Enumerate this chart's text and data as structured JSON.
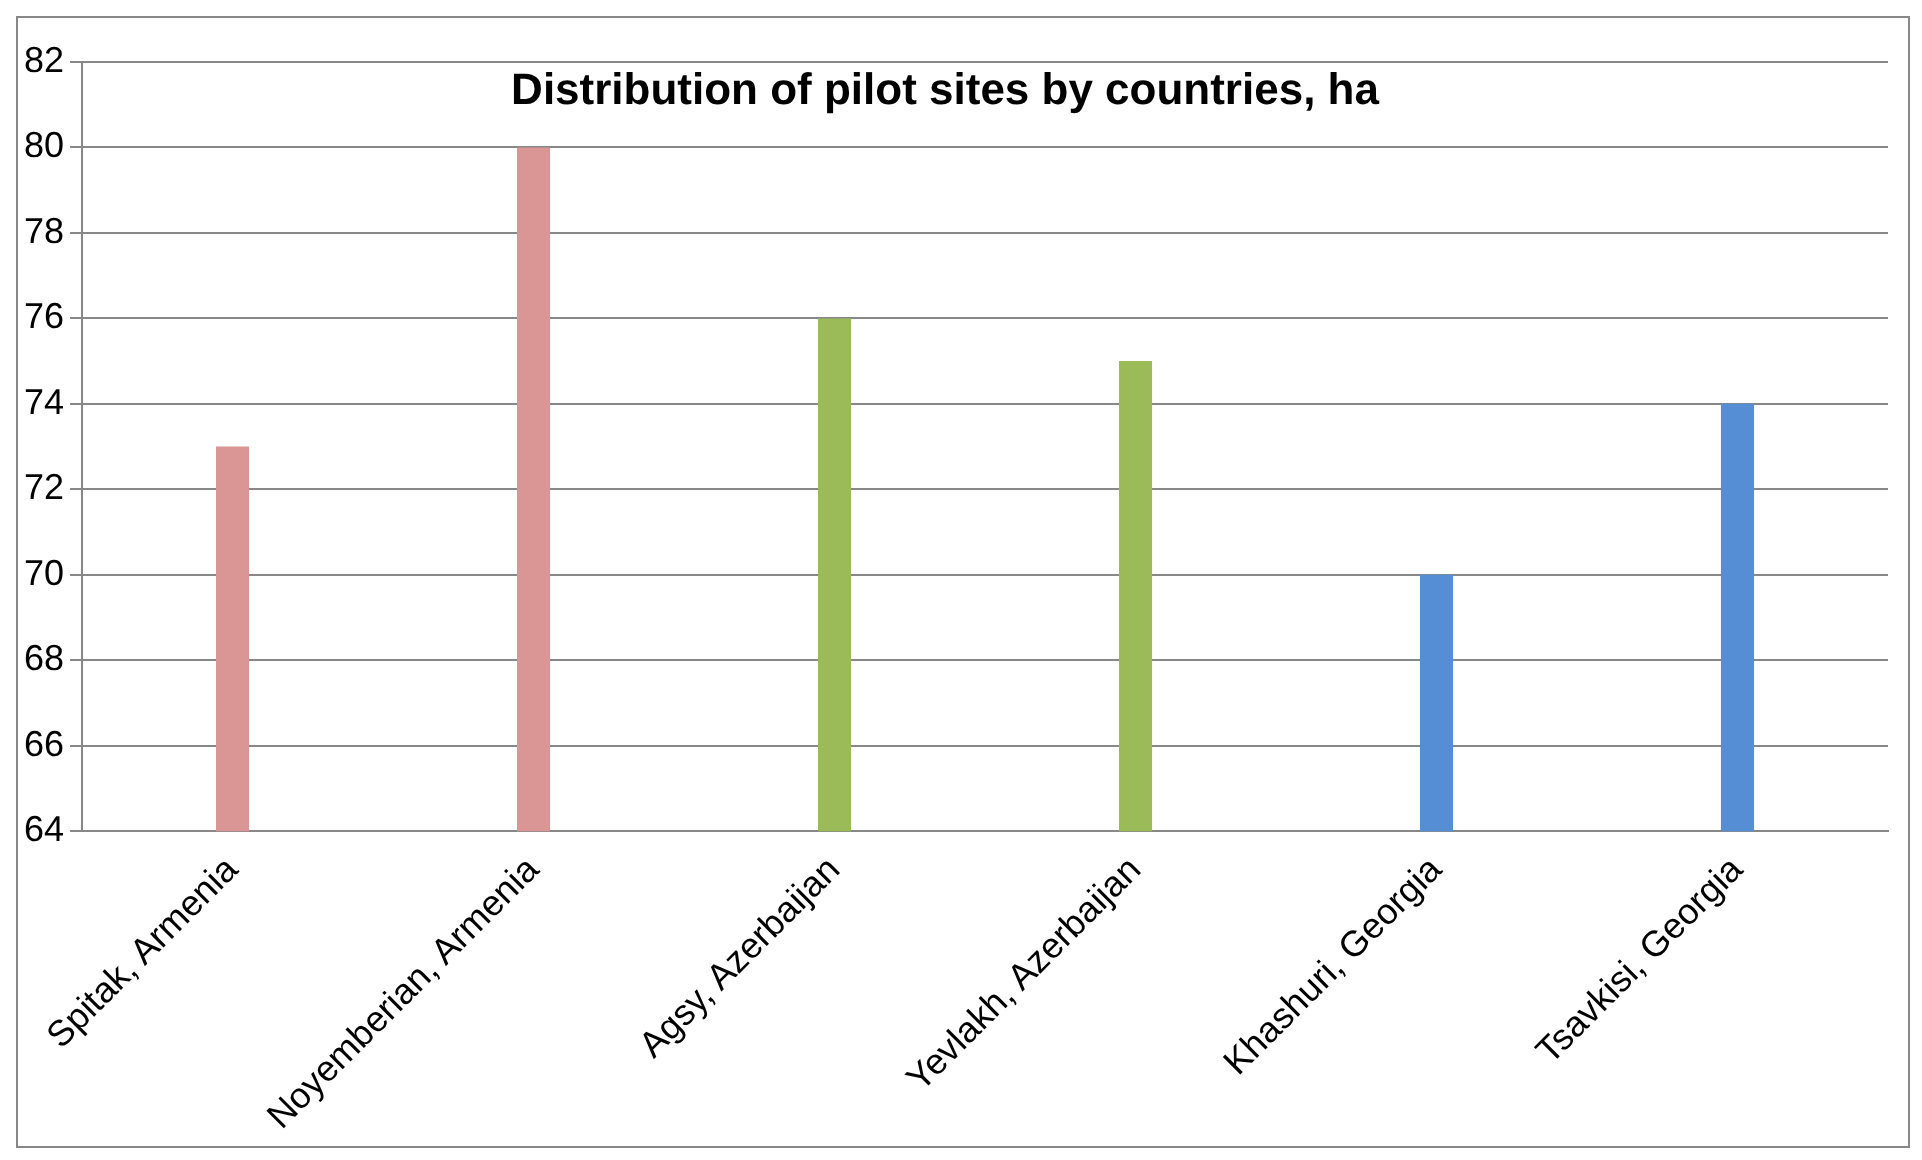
{
  "chart_data": {
    "type": "bar",
    "title": "Distribution of pilot sites by countries, ha",
    "categories": [
      "Spitak, Armenia",
      "Noyemberian, Armenia",
      "Agsy, Azerbaijan",
      "Yevlakh, Azerbaijan",
      "Khashuri, Georgia",
      "Tsavkisi, Georgia"
    ],
    "values": [
      73,
      80,
      76,
      75,
      70,
      74
    ],
    "colors": [
      "#d99694",
      "#d99694",
      "#9bbb59",
      "#9bbb59",
      "#558ed5",
      "#558ed5"
    ],
    "ylim": [
      64,
      82
    ],
    "yticks": [
      64,
      66,
      68,
      70,
      72,
      74,
      76,
      78,
      80,
      82
    ],
    "grid": "y",
    "legend": false
  }
}
